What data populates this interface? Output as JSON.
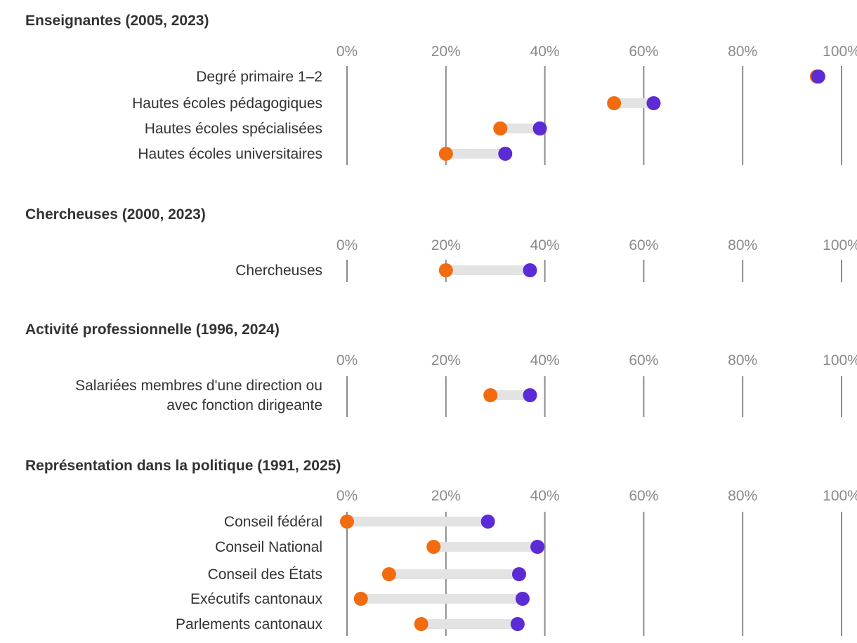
{
  "chart_data": [
    {
      "type": "dumbbell",
      "title": "Enseignantes (2005, 2023)",
      "xlim": [
        0,
        100
      ],
      "ticks": [
        "0%",
        "20%",
        "40%",
        "60%",
        "80%",
        "100%"
      ],
      "series": [
        {
          "name": "2005",
          "color": "#f26b0f"
        },
        {
          "name": "2023",
          "color": "#5b2bd5"
        }
      ],
      "rows": [
        {
          "label": "Degré primaire 1–2",
          "start": 95,
          "end": 95.3
        },
        {
          "label": "Hautes écoles pédagogiques",
          "start": 54,
          "end": 62
        },
        {
          "label": "Hautes écoles spécialisées",
          "start": 31,
          "end": 39
        },
        {
          "label": "Hautes écoles universitaires",
          "start": 20,
          "end": 32
        }
      ]
    },
    {
      "type": "dumbbell",
      "title": "Chercheuses (2000, 2023)",
      "xlim": [
        0,
        100
      ],
      "ticks": [
        "0%",
        "20%",
        "40%",
        "60%",
        "80%",
        "100%"
      ],
      "series": [
        {
          "name": "2000",
          "color": "#f26b0f"
        },
        {
          "name": "2023",
          "color": "#5b2bd5"
        }
      ],
      "rows": [
        {
          "label": "Chercheuses",
          "start": 20,
          "end": 37
        }
      ]
    },
    {
      "type": "dumbbell",
      "title": "Activité professionnelle (1996, 2024)",
      "xlim": [
        0,
        100
      ],
      "ticks": [
        "0%",
        "20%",
        "40%",
        "60%",
        "80%",
        "100%"
      ],
      "series": [
        {
          "name": "1996",
          "color": "#f26b0f"
        },
        {
          "name": "2024",
          "color": "#5b2bd5"
        }
      ],
      "rows": [
        {
          "label": [
            "Salariées membres d'une direction ou",
            "avec fonction dirigeante"
          ],
          "start": 29,
          "end": 37
        }
      ]
    },
    {
      "type": "dumbbell",
      "title": "Représentation dans la politique (1991, 2025)",
      "xlim": [
        0,
        100
      ],
      "ticks": [
        "0%",
        "20%",
        "40%",
        "60%",
        "80%",
        "100%"
      ],
      "series": [
        {
          "name": "1991",
          "color": "#f26b0f"
        },
        {
          "name": "2025",
          "color": "#5b2bd5"
        }
      ],
      "rows": [
        {
          "label": "Conseil fédéral",
          "start": 0,
          "end": 28.5
        },
        {
          "label": "Conseil National",
          "start": 17.5,
          "end": 38.5
        },
        {
          "label": "Conseil des États",
          "start": 8.5,
          "end": 34.8
        },
        {
          "label": "Exécutifs cantonaux",
          "start": 2.8,
          "end": 35.5
        },
        {
          "label": "Parlements cantonaux",
          "start": 15,
          "end": 34.5
        }
      ]
    }
  ]
}
